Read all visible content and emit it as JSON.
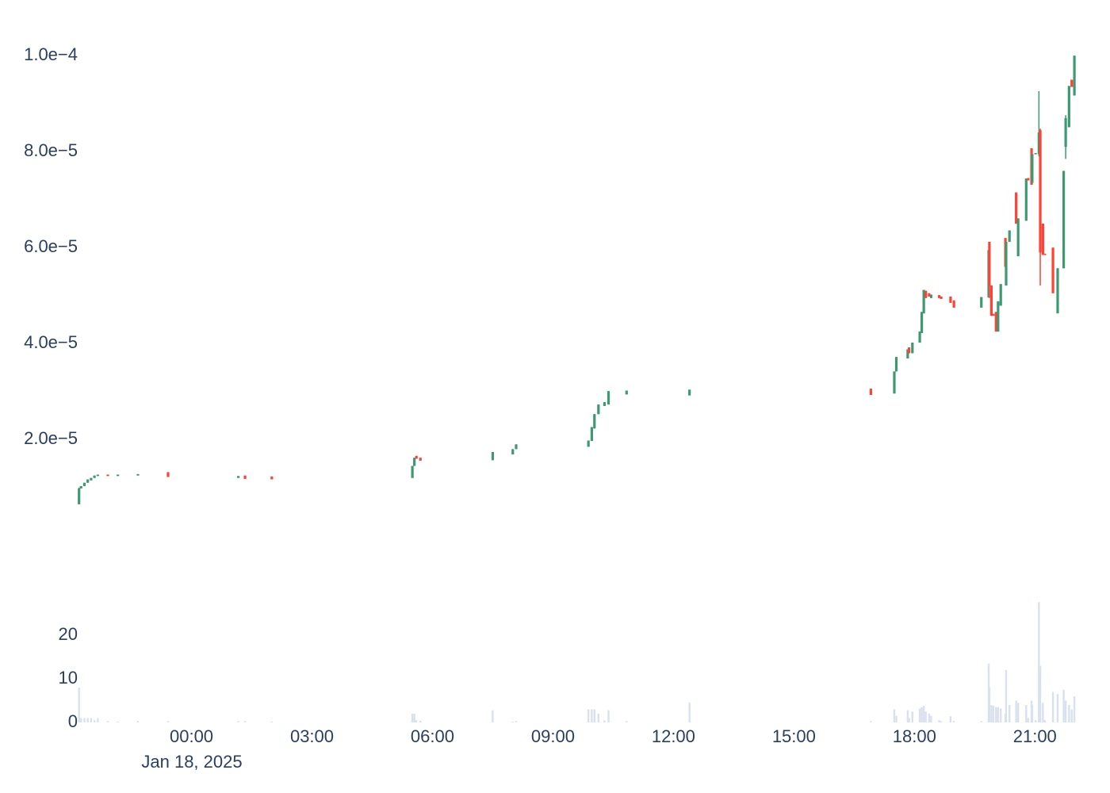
{
  "chart_data": {
    "type": "candlestick",
    "x": [
      "2025-01-17T21:12",
      "2025-01-17T21:15",
      "2025-01-17T21:20",
      "2025-01-17T21:25",
      "2025-01-17T21:30",
      "2025-01-17T21:35",
      "2025-01-17T21:40",
      "2025-01-17T21:55",
      "2025-01-17T22:10",
      "2025-01-17T22:40",
      "2025-01-17T23:25",
      "2025-01-18T01:10",
      "2025-01-18T01:20",
      "2025-01-18T02:00",
      "2025-01-18T05:30",
      "2025-01-18T05:33",
      "2025-01-18T05:36",
      "2025-01-18T05:42",
      "2025-01-18T07:30",
      "2025-01-18T08:00",
      "2025-01-18T08:05",
      "2025-01-18T09:53",
      "2025-01-18T09:58",
      "2025-01-18T10:02",
      "2025-01-18T10:08",
      "2025-01-18T10:17",
      "2025-01-18T10:23",
      "2025-01-18T10:50",
      "2025-01-18T12:24",
      "2025-01-18T16:55",
      "2025-01-18T17:30",
      "2025-01-18T17:33",
      "2025-01-18T17:50",
      "2025-01-18T17:52",
      "2025-01-18T17:57",
      "2025-01-18T18:08",
      "2025-01-18T18:11",
      "2025-01-18T18:14",
      "2025-01-18T18:17",
      "2025-01-18T18:22",
      "2025-01-18T18:25",
      "2025-01-18T18:37",
      "2025-01-18T18:40",
      "2025-01-18T18:54",
      "2025-01-18T18:59",
      "2025-01-18T19:40",
      "2025-01-18T19:51",
      "2025-01-18T19:52",
      "2025-01-18T19:55",
      "2025-01-18T19:58",
      "2025-01-18T20:02",
      "2025-01-18T20:05",
      "2025-01-18T20:09",
      "2025-01-18T20:16",
      "2025-01-18T20:17",
      "2025-01-18T20:22",
      "2025-01-18T20:32",
      "2025-01-18T20:35",
      "2025-01-18T20:47",
      "2025-01-18T20:50",
      "2025-01-18T20:55",
      "2025-01-18T20:56",
      "2025-01-18T21:01",
      "2025-01-18T21:06",
      "2025-01-18T21:08",
      "2025-01-18T21:12",
      "2025-01-18T21:15",
      "2025-01-18T21:27",
      "2025-01-18T21:34",
      "2025-01-18T21:43",
      "2025-01-18T21:46",
      "2025-01-18T21:51",
      "2025-01-18T21:55",
      "2025-01-18T21:59"
    ],
    "open": [
      6.5e-06,
      9.8e-06,
      1.03e-05,
      1.1e-05,
      1.15e-05,
      1.2e-05,
      1.24e-05,
      1.27e-05,
      1.24e-05,
      1.25e-05,
      1.32e-05,
      1.2e-05,
      1.25e-05,
      1.23e-05,
      1.2e-05,
      1.45e-05,
      1.66e-05,
      1.62e-05,
      1.57e-05,
      1.69e-05,
      1.8e-05,
      1.85e-05,
      1.97e-05,
      2.23e-05,
      2.53e-05,
      2.7e-05,
      2.73e-05,
      2.94e-05,
      2.92e-05,
      3.06e-05,
      2.96e-05,
      3.42e-05,
      3.69e-05,
      3.92e-05,
      3.8e-05,
      4.02e-05,
      4.22e-05,
      4.63e-05,
      5.1e-05,
      5.05e-05,
      4.95e-05,
      5.01e-05,
      4.98e-05,
      4.98e-05,
      4.9e-05,
      4.75e-05,
      4.96e-05,
      6.12e-05,
      5.21e-05,
      4.62e-05,
      4.66e-05,
      4.25e-05,
      4.79e-05,
      6.2e-05,
      5.21e-05,
      6.12e-05,
      7.15e-05,
      5.82e-05,
      6.56e-05,
      7.45e-05,
      8.07e-05,
      7.35e-05,
      7.95e-05,
      7.95e-05,
      8.45e-05,
      6.5e-05,
      5.87e-05,
      6e-05,
      4.63e-05,
      5.57e-05,
      8.1e-05,
      8.51e-05,
      9.5e-05,
      9.17e-05
    ],
    "high": [
      1e-05,
      1.03e-05,
      1.1e-05,
      1.17e-05,
      1.2e-05,
      1.25e-05,
      1.27e-05,
      1.27e-05,
      1.27e-05,
      1.28e-05,
      1.32e-05,
      1.24e-05,
      1.25e-05,
      1.23e-05,
      1.45e-05,
      1.62e-05,
      1.66e-05,
      1.62e-05,
      1.74e-05,
      1.8e-05,
      1.9e-05,
      1.98e-05,
      2.26e-05,
      2.53e-05,
      2.73e-05,
      2.78e-05,
      3.01e-05,
      3.02e-05,
      3.04e-05,
      3.06e-05,
      3.42e-05,
      3.72e-05,
      3.88e-05,
      3.92e-05,
      4.02e-05,
      4.25e-05,
      4.66e-05,
      5.12e-05,
      5.1e-05,
      5.05e-05,
      5.02e-05,
      5.01e-05,
      4.98e-05,
      4.98e-05,
      4.9e-05,
      4.97e-05,
      5.95e-05,
      6.12e-05,
      5.21e-05,
      4.62e-05,
      4.66e-05,
      4.88e-05,
      5.24e-05,
      6.2e-05,
      6.12e-05,
      6.36e-05,
      7.15e-05,
      6.61e-05,
      7.44e-05,
      7.45e-05,
      8.07e-05,
      7.95e-05,
      7.97e-05,
      9.26e-05,
      8.48e-05,
      6.5e-05,
      5.87e-05,
      6e-05,
      5.57e-05,
      7.6e-05,
      8.76e-05,
      9.37e-05,
      9.5e-05,
      0.0001
    ],
    "low": [
      6.5e-06,
      9.8e-06,
      1.03e-05,
      1.1e-05,
      1.15e-05,
      1.2e-05,
      1.24e-05,
      1.24e-05,
      1.24e-05,
      1.25e-05,
      1.22e-05,
      1.2e-05,
      1.18e-05,
      1.17e-05,
      1.2e-05,
      1.45e-05,
      1.6e-05,
      1.56e-05,
      1.57e-05,
      1.69e-05,
      1.8e-05,
      1.85e-05,
      1.97e-05,
      2.23e-05,
      2.53e-05,
      2.7e-05,
      2.73e-05,
      2.94e-05,
      2.92e-05,
      2.93e-05,
      2.96e-05,
      3.42e-05,
      3.69e-05,
      3.8e-05,
      3.8e-05,
      4.02e-05,
      4.22e-05,
      4.63e-05,
      4.95e-05,
      4.98e-05,
      4.95e-05,
      4.95e-05,
      4.93e-05,
      4.85e-05,
      4.75e-05,
      4.75e-05,
      4.96e-05,
      4.95e-05,
      4.58e-05,
      4.58e-05,
      4.25e-05,
      4.25e-05,
      4.79e-05,
      5.6e-05,
      5.21e-05,
      6.12e-05,
      6.5e-05,
      5.82e-05,
      6.56e-05,
      7.4e-05,
      7.31e-05,
      7.35e-05,
      7.95e-05,
      7.9e-05,
      5.21e-05,
      5.85e-05,
      5.85e-05,
      5.05e-05,
      4.63e-05,
      5.57e-05,
      7.85e-05,
      8.51e-05,
      9.35e-05,
      9.17e-05
    ],
    "close": [
      9.8e-06,
      1.03e-05,
      1.1e-05,
      1.17e-05,
      1.2e-05,
      1.25e-05,
      1.27e-05,
      1.24e-05,
      1.27e-05,
      1.28e-05,
      1.22e-05,
      1.24e-05,
      1.18e-05,
      1.17e-05,
      1.45e-05,
      1.62e-05,
      1.6e-05,
      1.56e-05,
      1.74e-05,
      1.8e-05,
      1.9e-05,
      1.98e-05,
      2.26e-05,
      2.53e-05,
      2.73e-05,
      2.78e-05,
      3.01e-05,
      3.02e-05,
      3.04e-05,
      2.93e-05,
      3.42e-05,
      3.72e-05,
      3.88e-05,
      3.8e-05,
      4.02e-05,
      4.25e-05,
      4.66e-05,
      5.12e-05,
      4.95e-05,
      4.98e-05,
      5.02e-05,
      4.95e-05,
      4.93e-05,
      4.85e-05,
      4.75e-05,
      4.97e-05,
      5.95e-05,
      5.2e-05,
      4.58e-05,
      4.58e-05,
      4.25e-05,
      4.88e-05,
      5.24e-05,
      5.6e-05,
      6.12e-05,
      6.36e-05,
      6.5e-05,
      6.61e-05,
      7.44e-05,
      7.4e-05,
      7.31e-05,
      7.95e-05,
      7.97e-05,
      8.4e-05,
      5.9e-05,
      5.85e-05,
      5.85e-05,
      5.05e-05,
      5.57e-05,
      7.6e-05,
      8.7e-05,
      9.37e-05,
      9.35e-05,
      0.0001
    ],
    "increasing_color": "#3d9970",
    "decreasing_color": "#ff4136",
    "xlim": [
      "2025-01-17T21:10",
      "2025-01-18T22:06"
    ],
    "xticks": [
      {
        "value": "2025-01-18T00:00",
        "label": "00:00"
      },
      {
        "value": "2025-01-18T03:00",
        "label": "03:00"
      },
      {
        "value": "2025-01-18T06:00",
        "label": "06:00"
      },
      {
        "value": "2025-01-18T09:00",
        "label": "09:00"
      },
      {
        "value": "2025-01-18T12:00",
        "label": "12:00"
      },
      {
        "value": "2025-01-18T15:00",
        "label": "15:00"
      },
      {
        "value": "2025-01-18T18:00",
        "label": "18:00"
      },
      {
        "value": "2025-01-18T21:00",
        "label": "21:00"
      }
    ],
    "xtick_date_label": "Jan 18, 2025",
    "ylim": [
      6e-06,
      0.000105
    ],
    "yticks": [
      {
        "value": 2e-05,
        "label": "2.0e−5"
      },
      {
        "value": 4e-05,
        "label": "4.0e−5"
      },
      {
        "value": 6e-05,
        "label": "6.0e−5"
      },
      {
        "value": 8e-05,
        "label": "8.0e−5"
      },
      {
        "value": 0.0001,
        "label": "1.0e−4"
      }
    ],
    "volume": {
      "color": "#d9e0ee",
      "values": [
        8,
        1,
        1,
        1,
        1,
        0.5,
        1,
        0.3,
        0.2,
        0.3,
        0.3,
        0.3,
        0.3,
        0.2,
        2,
        2,
        0.5,
        0.4,
        2.8,
        0.2,
        0.3,
        3,
        3,
        3,
        2,
        0.5,
        2.8,
        0.3,
        4.6,
        0.3,
        3,
        1.5,
        2.8,
        1,
        2.5,
        3.2,
        3.5,
        3.8,
        2.5,
        2,
        1.5,
        0.5,
        0.3,
        1.4,
        0.3,
        0.3,
        13.5,
        8,
        4,
        3.8,
        3.5,
        3.5,
        3.2,
        2,
        12,
        4,
        5,
        4.5,
        4,
        1,
        5,
        4,
        0.5,
        27.6,
        13,
        4.5,
        0.5,
        7,
        6.5,
        7.5,
        5,
        4,
        3,
        6
      ],
      "ylim": [
        0,
        28
      ],
      "yticks": [
        0,
        10,
        20
      ]
    }
  }
}
